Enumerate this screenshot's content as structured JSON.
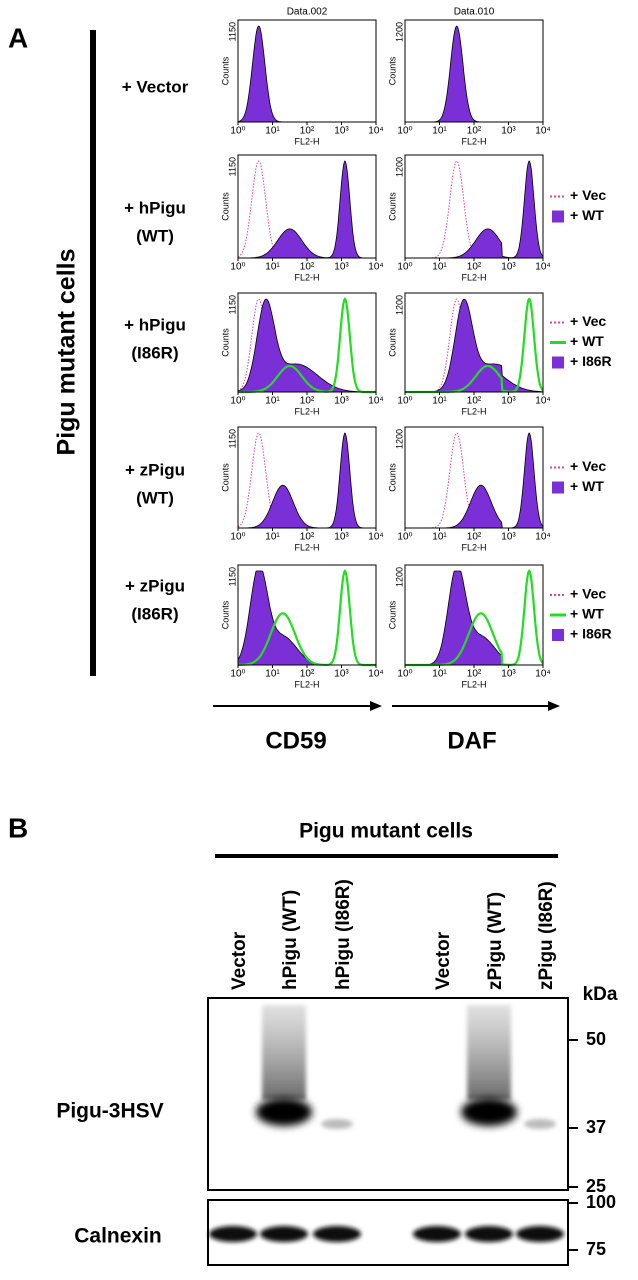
{
  "panel_a": {
    "label": "A",
    "side_label": "Pigu mutant cells",
    "rows": [
      [
        "+ Vector"
      ],
      [
        "+ hPigu",
        "(WT)"
      ],
      [
        "+ hPigu",
        "(I86R)"
      ],
      [
        "+ zPigu",
        "(WT)"
      ],
      [
        "+ zPigu",
        "(I86R)"
      ]
    ],
    "columns": [
      {
        "title": "Data.002",
        "y_top": "1150",
        "marker": "CD59"
      },
      {
        "title": "Data.010",
        "y_top": "1200",
        "marker": "DAF"
      }
    ],
    "y_label": "Counts",
    "x_label": "FL2-H",
    "x_ticks": [
      "10⁰",
      "10¹",
      "10²",
      "10³",
      "10⁴"
    ],
    "legends": [
      [],
      [
        {
          "name": "+ Vec",
          "style": "dotted",
          "color": "#e0409a"
        },
        {
          "name": "+ WT",
          "style": "fill",
          "color": "#7b2fd6"
        }
      ],
      [
        {
          "name": "+ Vec",
          "style": "dotted",
          "color": "#e0409a"
        },
        {
          "name": "+ WT",
          "style": "line",
          "color": "#22dd22"
        },
        {
          "name": "+ I86R",
          "style": "fill",
          "color": "#7b2fd6"
        }
      ],
      [
        {
          "name": "+ Vec",
          "style": "dotted",
          "color": "#e0409a"
        },
        {
          "name": "+ WT",
          "style": "fill",
          "color": "#7b2fd6"
        }
      ],
      [
        {
          "name": "+ Vec",
          "style": "dotted",
          "color": "#e0409a"
        },
        {
          "name": "+ WT",
          "style": "line",
          "color": "#22dd22"
        },
        {
          "name": "+ I86R",
          "style": "fill",
          "color": "#7b2fd6"
        }
      ]
    ]
  },
  "panel_b": {
    "label": "B",
    "title": "Pigu mutant cells",
    "lanes": [
      "Vector",
      "hPigu (WT)",
      "hPigu (I86R)",
      "Vector",
      "zPigu (WT)",
      "zPigu (I86R)"
    ],
    "unit": "kDa",
    "blot_labels": [
      "Pigu-3HSV",
      "Calnexin"
    ],
    "markers_top": [
      "50",
      "37",
      "25"
    ],
    "markers_bottom": [
      "100",
      "75"
    ]
  }
}
